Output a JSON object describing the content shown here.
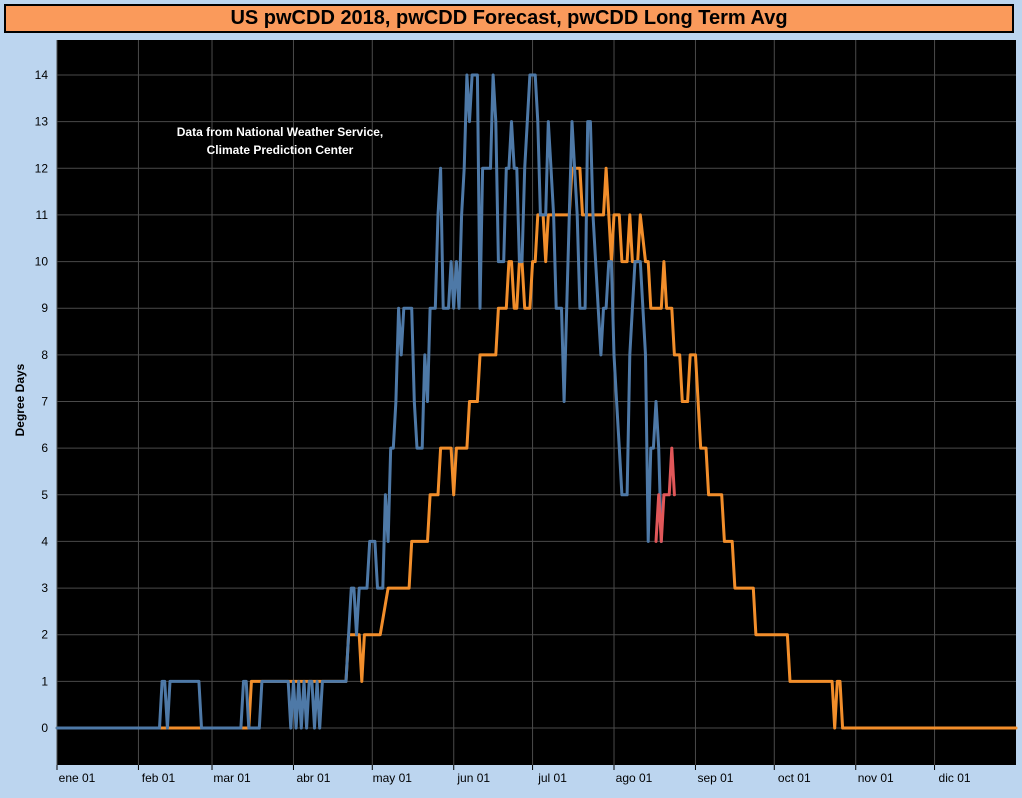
{
  "chart_data": {
    "type": "line",
    "title": "US pwCDD 2018, pwCDD Forecast, pwCDD Long Term Avg",
    "ylabel": "Degree Days",
    "xlabel": "",
    "annotation": [
      "Data from National Weather Service,",
      "Climate Prediction Center"
    ],
    "ylim": [
      0,
      14
    ],
    "yticks": [
      0,
      1,
      2,
      3,
      4,
      5,
      6,
      7,
      8,
      9,
      10,
      11,
      12,
      13,
      14
    ],
    "xlim": [
      1,
      366
    ],
    "xticks": [
      {
        "day": 1,
        "label": "ene 01"
      },
      {
        "day": 32,
        "label": "feb 01"
      },
      {
        "day": 60,
        "label": "mar 01"
      },
      {
        "day": 91,
        "label": "abr 01"
      },
      {
        "day": 121,
        "label": "may 01"
      },
      {
        "day": 152,
        "label": "jun 01"
      },
      {
        "day": 182,
        "label": "jul 01"
      },
      {
        "day": 213,
        "label": "ago 01"
      },
      {
        "day": 244,
        "label": "sep 01"
      },
      {
        "day": 274,
        "label": "oct 01"
      },
      {
        "day": 305,
        "label": "nov 01"
      },
      {
        "day": 335,
        "label": "dic 01"
      }
    ],
    "grid": true,
    "colors": {
      "background": "#000000",
      "grid": "#4a4a4a",
      "outer": "#bcd5ef",
      "title_bg": "#fa9a5b"
    },
    "series": [
      {
        "role": "long-term-avg",
        "color": "#f28e2b",
        "points": [
          [
            1,
            0
          ],
          [
            74,
            0
          ],
          [
            75,
            1
          ],
          [
            96,
            1
          ],
          [
            97,
            1
          ],
          [
            106,
            1
          ],
          [
            107,
            1
          ],
          [
            111,
            1
          ],
          [
            112,
            2
          ],
          [
            116,
            2
          ],
          [
            117,
            1
          ],
          [
            118,
            2
          ],
          [
            123,
            2
          ],
          [
            124,
            2
          ],
          [
            127,
            3
          ],
          [
            131,
            3
          ],
          [
            135,
            3
          ],
          [
            136,
            4
          ],
          [
            142,
            4
          ],
          [
            143,
            5
          ],
          [
            146,
            5
          ],
          [
            147,
            6
          ],
          [
            151,
            6
          ],
          [
            152,
            5
          ],
          [
            153,
            6
          ],
          [
            157,
            6
          ],
          [
            158,
            7
          ],
          [
            161,
            7
          ],
          [
            162,
            8
          ],
          [
            168,
            8
          ],
          [
            169,
            9
          ],
          [
            172,
            9
          ],
          [
            173,
            10
          ],
          [
            174,
            10
          ],
          [
            175,
            9
          ],
          [
            176,
            9
          ],
          [
            177,
            10
          ],
          [
            178,
            10
          ],
          [
            179,
            9
          ],
          [
            181,
            9
          ],
          [
            182,
            10
          ],
          [
            183,
            10
          ],
          [
            184,
            11
          ],
          [
            186,
            11
          ],
          [
            187,
            10
          ],
          [
            188,
            11
          ],
          [
            196,
            11
          ],
          [
            197,
            12
          ],
          [
            200,
            12
          ],
          [
            201,
            11
          ],
          [
            209,
            11
          ],
          [
            210,
            12
          ],
          [
            211,
            11
          ],
          [
            212,
            10
          ],
          [
            213,
            11
          ],
          [
            215,
            11
          ],
          [
            216,
            10
          ],
          [
            218,
            10
          ],
          [
            219,
            11
          ],
          [
            220,
            10
          ],
          [
            222,
            10
          ],
          [
            223,
            11
          ],
          [
            225,
            10
          ],
          [
            226,
            10
          ],
          [
            227,
            9
          ],
          [
            231,
            9
          ],
          [
            232,
            10
          ],
          [
            233,
            9
          ],
          [
            235,
            9
          ],
          [
            236,
            8
          ],
          [
            238,
            8
          ],
          [
            239,
            7
          ],
          [
            241,
            7
          ],
          [
            242,
            8
          ],
          [
            244,
            8
          ],
          [
            245,
            7
          ],
          [
            246,
            6
          ],
          [
            248,
            6
          ],
          [
            249,
            5
          ],
          [
            254,
            5
          ],
          [
            255,
            4
          ],
          [
            258,
            4
          ],
          [
            259,
            3
          ],
          [
            266,
            3
          ],
          [
            267,
            2
          ],
          [
            279,
            2
          ],
          [
            280,
            1
          ],
          [
            296,
            1
          ],
          [
            297,
            0
          ],
          [
            298,
            1
          ],
          [
            299,
            1
          ],
          [
            300,
            0
          ],
          [
            366,
            0
          ]
        ]
      },
      {
        "role": "2018",
        "color": "#4e79a7",
        "points": [
          [
            1,
            0
          ],
          [
            40,
            0
          ],
          [
            41,
            1
          ],
          [
            42,
            1
          ],
          [
            43,
            0
          ],
          [
            44,
            1
          ],
          [
            55,
            1
          ],
          [
            56,
            0
          ],
          [
            71,
            0
          ],
          [
            72,
            1
          ],
          [
            73,
            1
          ],
          [
            74,
            0
          ],
          [
            78,
            0
          ],
          [
            79,
            1
          ],
          [
            89,
            1
          ],
          [
            90,
            0
          ],
          [
            91,
            1
          ],
          [
            92,
            0
          ],
          [
            93,
            1
          ],
          [
            94,
            0
          ],
          [
            95,
            1
          ],
          [
            96,
            0
          ],
          [
            97,
            1
          ],
          [
            98,
            1
          ],
          [
            99,
            0
          ],
          [
            100,
            1
          ],
          [
            101,
            0
          ],
          [
            102,
            1
          ],
          [
            111,
            1
          ],
          [
            112,
            2
          ],
          [
            113,
            3
          ],
          [
            114,
            3
          ],
          [
            115,
            2
          ],
          [
            116,
            3
          ],
          [
            119,
            3
          ],
          [
            120,
            4
          ],
          [
            122,
            4
          ],
          [
            123,
            3
          ],
          [
            125,
            3
          ],
          [
            126,
            5
          ],
          [
            127,
            4
          ],
          [
            128,
            6
          ],
          [
            129,
            6
          ],
          [
            130,
            7
          ],
          [
            131,
            9
          ],
          [
            132,
            8
          ],
          [
            133,
            9
          ],
          [
            136,
            9
          ],
          [
            137,
            7
          ],
          [
            138,
            6
          ],
          [
            140,
            6
          ],
          [
            141,
            8
          ],
          [
            142,
            7
          ],
          [
            143,
            9
          ],
          [
            145,
            9
          ],
          [
            146,
            11
          ],
          [
            147,
            12
          ],
          [
            148,
            9
          ],
          [
            150,
            9
          ],
          [
            151,
            10
          ],
          [
            152,
            9
          ],
          [
            153,
            10
          ],
          [
            154,
            9
          ],
          [
            155,
            11
          ],
          [
            156,
            12
          ],
          [
            157,
            14
          ],
          [
            158,
            13
          ],
          [
            159,
            14
          ],
          [
            161,
            14
          ],
          [
            162,
            9
          ],
          [
            163,
            12
          ],
          [
            166,
            12
          ],
          [
            167,
            14
          ],
          [
            168,
            13
          ],
          [
            169,
            10
          ],
          [
            171,
            10
          ],
          [
            172,
            12
          ],
          [
            173,
            12
          ],
          [
            174,
            13
          ],
          [
            175,
            12
          ],
          [
            176,
            12
          ],
          [
            177,
            10
          ],
          [
            178,
            10
          ],
          [
            179,
            12
          ],
          [
            180,
            13
          ],
          [
            181,
            14
          ],
          [
            183,
            14
          ],
          [
            184,
            13
          ],
          [
            185,
            11
          ],
          [
            187,
            11
          ],
          [
            188,
            13
          ],
          [
            189,
            12
          ],
          [
            190,
            11
          ],
          [
            191,
            9
          ],
          [
            193,
            9
          ],
          [
            194,
            7
          ],
          [
            195,
            9
          ],
          [
            196,
            11
          ],
          [
            197,
            13
          ],
          [
            199,
            11
          ],
          [
            200,
            9
          ],
          [
            202,
            9
          ],
          [
            203,
            13
          ],
          [
            204,
            13
          ],
          [
            205,
            11
          ],
          [
            207,
            9
          ],
          [
            208,
            8
          ],
          [
            209,
            9
          ],
          [
            210,
            9
          ],
          [
            211,
            10
          ],
          [
            212,
            10
          ],
          [
            213,
            8
          ],
          [
            214,
            7
          ],
          [
            215,
            6
          ],
          [
            216,
            5
          ],
          [
            218,
            5
          ],
          [
            219,
            8
          ],
          [
            220,
            9
          ],
          [
            221,
            10
          ],
          [
            223,
            10
          ],
          [
            224,
            9
          ],
          [
            225,
            8
          ],
          [
            226,
            4
          ],
          [
            227,
            6
          ],
          [
            228,
            6
          ],
          [
            229,
            7
          ],
          [
            230,
            6
          ],
          [
            231,
            4
          ]
        ]
      },
      {
        "role": "forecast",
        "color": "#e15759",
        "points": [
          [
            229,
            4
          ],
          [
            230,
            5
          ],
          [
            231,
            4
          ],
          [
            232,
            5
          ],
          [
            234,
            5
          ],
          [
            235,
            6
          ],
          [
            236,
            5
          ]
        ]
      }
    ]
  }
}
